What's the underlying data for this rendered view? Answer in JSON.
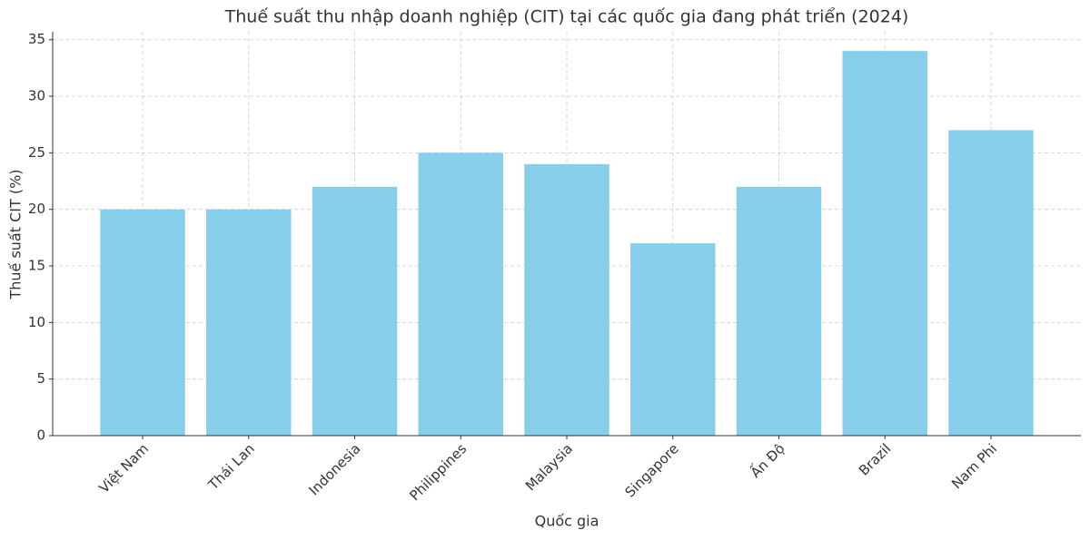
{
  "chart_data": {
    "type": "bar",
    "title": "Thuế suất thu nhập doanh nghiệp (CIT) tại các quốc gia đang phát triển (2024)",
    "x_label": "Quốc gia",
    "y_label": "Thuế suất CIT (%)",
    "categories": [
      "Việt Nam",
      "Thái Lan",
      "Indonesia",
      "Philippines",
      "Malaysia",
      "Singapore",
      "Ấn Độ",
      "Brazil",
      "Nam Phi"
    ],
    "values": [
      20,
      20,
      22,
      25,
      24,
      17,
      22,
      34,
      27
    ],
    "color": "#87ceeb",
    "ylim": [
      0,
      35.7
    ],
    "yticks": [
      0,
      5,
      10,
      15,
      20,
      25,
      30,
      35
    ],
    "grid": true
  }
}
